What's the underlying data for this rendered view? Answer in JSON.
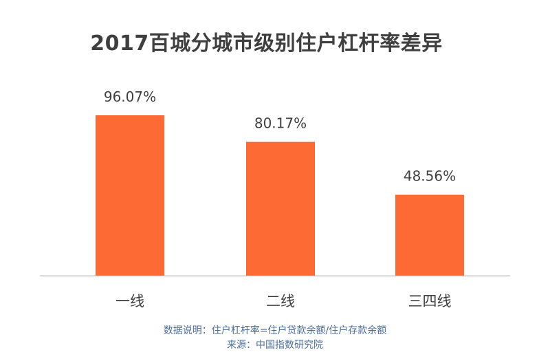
{
  "chart_data": {
    "type": "bar",
    "title": "2017百城分城市级别住户杠杆率差异",
    "categories": [
      "一线",
      "二线",
      "三四线"
    ],
    "values": [
      96.07,
      80.17,
      48.56
    ],
    "value_labels": [
      "96.07%",
      "80.17%",
      "48.56%"
    ],
    "ylim": [
      0,
      100
    ],
    "grid": false,
    "bar_color": "#fe6a34"
  },
  "footnote": {
    "definition": "数据说明：住户杠杆率=住户贷款余额/住户存款余额",
    "source": "来源：中国指数研究院"
  }
}
